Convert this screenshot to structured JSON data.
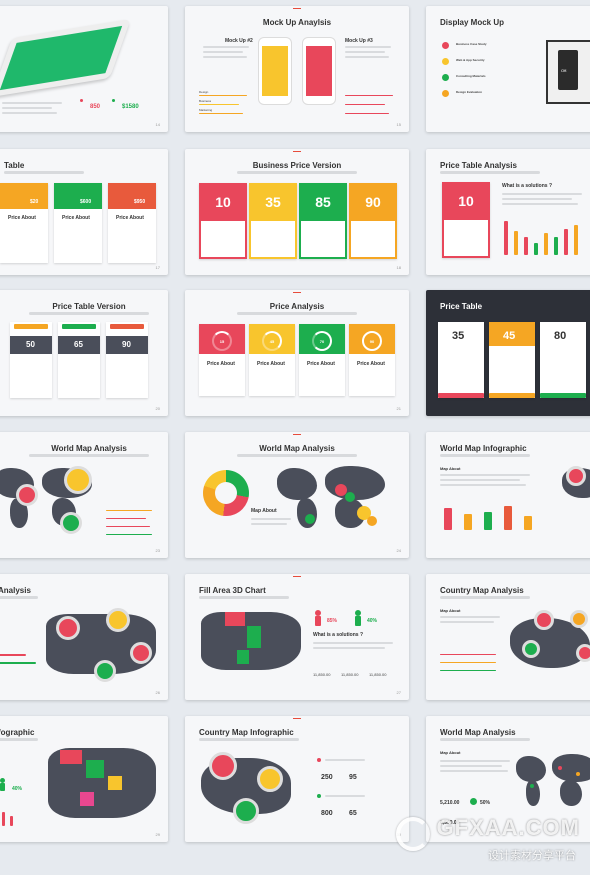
{
  "slides": {
    "s1": {
      "v1": "850",
      "v2": "$1580",
      "page": "14"
    },
    "s2": {
      "title": "Mock Up Anaylsis",
      "m1": "Mock Up #2",
      "m2": "Mock Up #3",
      "r1": "Design",
      "r2": "Business",
      "r3": "Marketing",
      "page": "15"
    },
    "s3": {
      "title": "Display Mock Up",
      "i1": "Business Case Study",
      "i2": "Web & App Security",
      "i3": "Consulting Materials",
      "i4": "Design Evaluation",
      "screen_text": "Off.",
      "page": "16"
    },
    "s4": {
      "title": "Table",
      "p1": "$20",
      "p2": "$600",
      "p3": "$950",
      "h1": "Price About",
      "h2": "Price About",
      "h3": "Price About",
      "page": "17"
    },
    "s5": {
      "title": "Business Price Version",
      "p1": "10",
      "p2": "35",
      "p3": "85",
      "p4": "90",
      "page": "18"
    },
    "s6": {
      "title": "Price Table Analysis",
      "p1": "10",
      "q": "What is a solutions ?",
      "page": "19"
    },
    "s7": {
      "title": "Price Table Version",
      "p1": "50",
      "p2": "65",
      "p3": "90",
      "page": "20"
    },
    "s8": {
      "title": "Price Analysis",
      "c1": "15",
      "c2": "45",
      "c3": "70",
      "c4": "90",
      "h": "Price About",
      "page": "21"
    },
    "s9": {
      "title": "Price Table",
      "p1": "35",
      "p2": "45",
      "p3": "80",
      "page": "22"
    },
    "s10": {
      "title": "World Map Analysis",
      "page": "23"
    },
    "s11": {
      "title": "World Map Analysis",
      "about": "Map About",
      "page": "24"
    },
    "s12": {
      "title": "World Map Infographic",
      "about": "Map About",
      "page": "25"
    },
    "s13": {
      "title": "Analysis",
      "page": "26"
    },
    "s14": {
      "title": "Fill Area 3D Chart",
      "pct1": "85%",
      "pct2": "40%",
      "q": "What is a solutions ?",
      "n1": "11,850.00",
      "n2": "11,850.00",
      "n3": "11,850.00",
      "page": "27"
    },
    "s15": {
      "title": "Country Map Analysis",
      "about": "Map About",
      "page": "28"
    },
    "s16": {
      "title": "fographic",
      "pct": "40%",
      "page": "29"
    },
    "s17": {
      "title": "Country Map Infographic",
      "n1": "250",
      "n2": "95",
      "n3": "800",
      "n4": "65",
      "page": "30"
    },
    "s18": {
      "title": "World Map Analysis",
      "about": "Map About",
      "n1": "5,210.00",
      "n2": "50%",
      "n3": "6,500.00",
      "page": "31"
    }
  },
  "watermark": {
    "brand": "GFXAA.COM",
    "tagline": "设计素材分享平台"
  },
  "colors": {
    "red": "#e8475b",
    "orange": "#f5a623",
    "green": "#1dae4e",
    "yellow": "#f8c52d",
    "dark": "#4a4e5a"
  }
}
